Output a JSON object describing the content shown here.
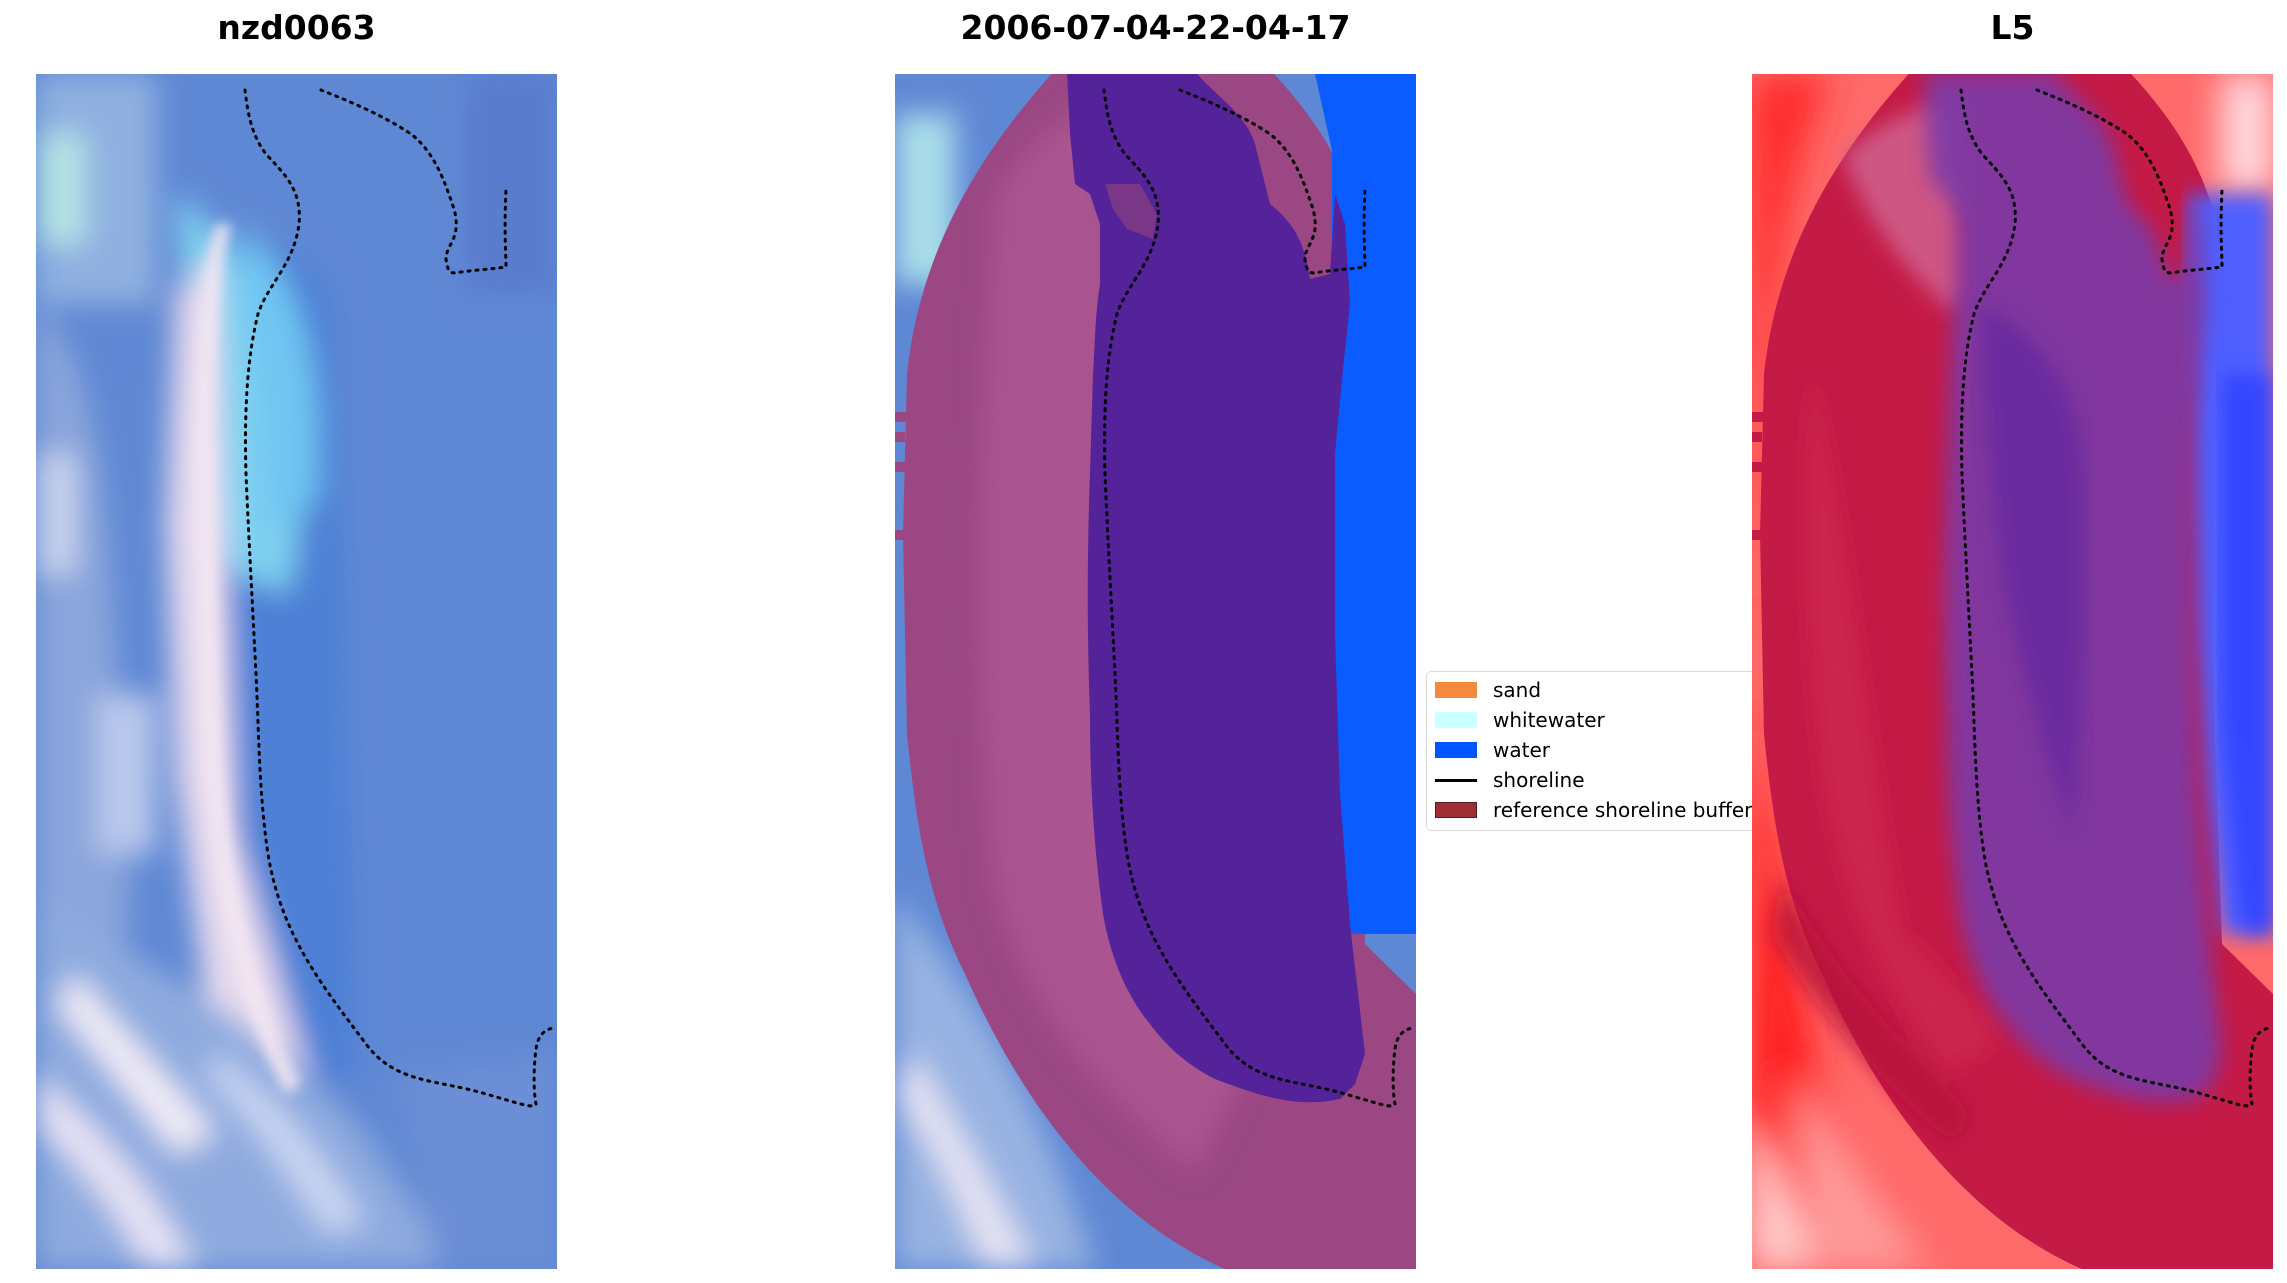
{
  "panels": [
    {
      "title": "nzd0063"
    },
    {
      "title": "2006-07-04-22-04-17"
    },
    {
      "title": "L5"
    }
  ],
  "legend": {
    "items": [
      {
        "label": "sand",
        "color": "#f58a3c",
        "kind": "patch"
      },
      {
        "label": "whitewater",
        "color": "#ccffff",
        "kind": "patch"
      },
      {
        "label": "water",
        "color": "#0055ff",
        "kind": "patch"
      },
      {
        "label": "shoreline",
        "color": "#000000",
        "kind": "line"
      },
      {
        "label": "reference shoreline buffer",
        "color": "#9e2f34",
        "kind": "patch"
      }
    ]
  },
  "colors": {
    "imagery_blue": "#5b86d6",
    "lagoon_cyan": "#6cc6f2",
    "buffer_mauve": "#9c4c88",
    "classified_water_purple": "#54239a",
    "water_blue": "#0a5cff",
    "index_red": "#ff1a1a",
    "index_crimson": "#c2163f",
    "index_violet": "#6b2da3"
  }
}
